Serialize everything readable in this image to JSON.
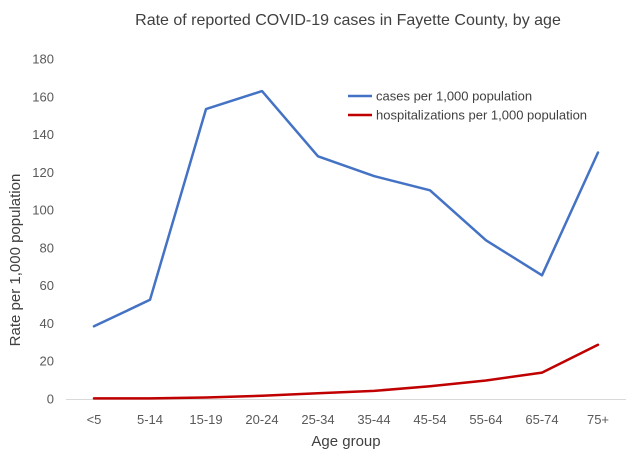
{
  "chart_data": {
    "type": "line",
    "title": "Rate of reported COVID-19 cases in Fayette County, by age",
    "xlabel": "Age group",
    "ylabel": "Rate per 1,000 population",
    "categories": [
      "<5",
      "5-14",
      "15-19",
      "20-24",
      "25-34",
      "35-44",
      "45-54",
      "55-64",
      "65-74",
      "75+"
    ],
    "ylim": [
      0,
      180
    ],
    "yticks": [
      0,
      20,
      40,
      60,
      80,
      100,
      120,
      140,
      160,
      180
    ],
    "grid": false,
    "legend_position": "top-right",
    "series": [
      {
        "name": "cases per 1,000 population",
        "color": "#4472C4",
        "values": [
          38.5,
          52.5,
          153.5,
          163,
          128.5,
          118,
          110.5,
          84,
          65.5,
          130.5
        ]
      },
      {
        "name": "hospitalizations per 1,000 population",
        "color": "#C00000",
        "values": [
          0.3,
          0.3,
          0.8,
          1.7,
          3.0,
          4.3,
          6.8,
          9.8,
          14.0,
          28.7
        ]
      }
    ]
  }
}
